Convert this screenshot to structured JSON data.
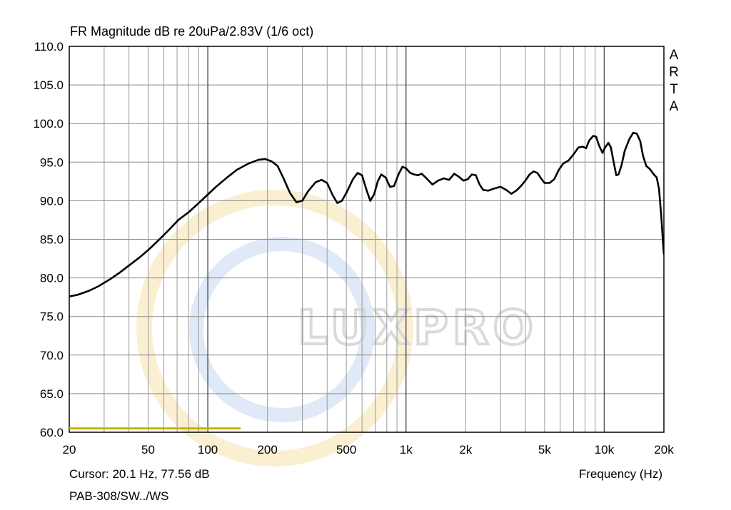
{
  "chart_data": {
    "type": "line",
    "title": "FR Magnitude dB re 20uPa/2.83V (1/6 oct)",
    "xlabel": "Frequency (Hz)",
    "ylabel": "",
    "x_scale": "log",
    "xlim": [
      20,
      20000
    ],
    "ylim": [
      60,
      110
    ],
    "grid": true,
    "y_ticks": [
      "60.0",
      "65.0",
      "70.0",
      "75.0",
      "80.0",
      "85.0",
      "90.0",
      "95.0",
      "100.0",
      "105.0",
      "110.0"
    ],
    "x_ticks": [
      {
        "value": 20,
        "label": "20"
      },
      {
        "value": 50,
        "label": "50"
      },
      {
        "value": 100,
        "label": "100"
      },
      {
        "value": 200,
        "label": "200"
      },
      {
        "value": 500,
        "label": "500"
      },
      {
        "value": 1000,
        "label": "1k"
      },
      {
        "value": 2000,
        "label": "2k"
      },
      {
        "value": 5000,
        "label": "5k"
      },
      {
        "value": 10000,
        "label": "10k"
      },
      {
        "value": 20000,
        "label": "20k"
      }
    ],
    "series": [
      {
        "color": "#000000",
        "points": [
          [
            20,
            77.6
          ],
          [
            22,
            77.8
          ],
          [
            25,
            78.3
          ],
          [
            28,
            78.9
          ],
          [
            32,
            79.8
          ],
          [
            36,
            80.7
          ],
          [
            40,
            81.6
          ],
          [
            45,
            82.6
          ],
          [
            50,
            83.6
          ],
          [
            56,
            84.8
          ],
          [
            63,
            86.1
          ],
          [
            71,
            87.5
          ],
          [
            80,
            88.5
          ],
          [
            90,
            89.7
          ],
          [
            100,
            90.8
          ],
          [
            110,
            91.8
          ],
          [
            125,
            93.0
          ],
          [
            140,
            94.0
          ],
          [
            160,
            94.8
          ],
          [
            180,
            95.3
          ],
          [
            195,
            95.4
          ],
          [
            210,
            95.1
          ],
          [
            225,
            94.5
          ],
          [
            240,
            93.0
          ],
          [
            260,
            91.0
          ],
          [
            280,
            89.8
          ],
          [
            300,
            90.0
          ],
          [
            320,
            91.2
          ],
          [
            350,
            92.4
          ],
          [
            375,
            92.7
          ],
          [
            400,
            92.3
          ],
          [
            425,
            90.8
          ],
          [
            450,
            89.7
          ],
          [
            475,
            90.0
          ],
          [
            500,
            91.0
          ],
          [
            540,
            92.8
          ],
          [
            570,
            93.6
          ],
          [
            600,
            93.3
          ],
          [
            630,
            91.5
          ],
          [
            660,
            90.0
          ],
          [
            690,
            90.8
          ],
          [
            720,
            92.5
          ],
          [
            750,
            93.4
          ],
          [
            790,
            93.0
          ],
          [
            830,
            91.8
          ],
          [
            870,
            91.9
          ],
          [
            920,
            93.5
          ],
          [
            960,
            94.4
          ],
          [
            1000,
            94.2
          ],
          [
            1050,
            93.6
          ],
          [
            1100,
            93.4
          ],
          [
            1150,
            93.3
          ],
          [
            1200,
            93.5
          ],
          [
            1280,
            92.8
          ],
          [
            1360,
            92.1
          ],
          [
            1450,
            92.6
          ],
          [
            1550,
            92.9
          ],
          [
            1650,
            92.7
          ],
          [
            1750,
            93.5
          ],
          [
            1850,
            93.1
          ],
          [
            1950,
            92.6
          ],
          [
            2050,
            92.8
          ],
          [
            2150,
            93.4
          ],
          [
            2250,
            93.3
          ],
          [
            2350,
            92.1
          ],
          [
            2450,
            91.4
          ],
          [
            2600,
            91.3
          ],
          [
            2800,
            91.6
          ],
          [
            3000,
            91.8
          ],
          [
            3200,
            91.4
          ],
          [
            3400,
            90.9
          ],
          [
            3600,
            91.3
          ],
          [
            3800,
            91.9
          ],
          [
            4000,
            92.6
          ],
          [
            4200,
            93.4
          ],
          [
            4400,
            93.8
          ],
          [
            4600,
            93.6
          ],
          [
            4800,
            92.9
          ],
          [
            5000,
            92.3
          ],
          [
            5300,
            92.3
          ],
          [
            5600,
            92.8
          ],
          [
            5900,
            94.0
          ],
          [
            6200,
            94.8
          ],
          [
            6600,
            95.2
          ],
          [
            7000,
            96.0
          ],
          [
            7400,
            96.9
          ],
          [
            7800,
            97.0
          ],
          [
            8100,
            96.8
          ],
          [
            8400,
            97.8
          ],
          [
            8800,
            98.4
          ],
          [
            9100,
            98.3
          ],
          [
            9400,
            97.2
          ],
          [
            9800,
            96.2
          ],
          [
            10100,
            96.9
          ],
          [
            10500,
            97.5
          ],
          [
            10800,
            96.9
          ],
          [
            11200,
            94.8
          ],
          [
            11500,
            93.3
          ],
          [
            11800,
            93.4
          ],
          [
            12200,
            94.5
          ],
          [
            12700,
            96.5
          ],
          [
            13400,
            98.0
          ],
          [
            14000,
            98.8
          ],
          [
            14600,
            98.7
          ],
          [
            15200,
            97.7
          ],
          [
            15700,
            95.8
          ],
          [
            16300,
            94.5
          ],
          [
            17000,
            94.1
          ],
          [
            17800,
            93.4
          ],
          [
            18400,
            93.0
          ],
          [
            18900,
            91.5
          ],
          [
            19400,
            88.0
          ],
          [
            19800,
            84.5
          ],
          [
            20000,
            83.1
          ]
        ]
      },
      {
        "color": "#c8b400",
        "points": [
          [
            20,
            60.5
          ],
          [
            145,
            60.5
          ]
        ]
      }
    ],
    "annotations": {
      "cursor": "Cursor: 20.1 Hz, 77.56 dB",
      "model": "PAB-308/SW../WS",
      "brand_letters": [
        "A",
        "R",
        "T",
        "A"
      ],
      "watermark": "LUXPRO"
    }
  }
}
